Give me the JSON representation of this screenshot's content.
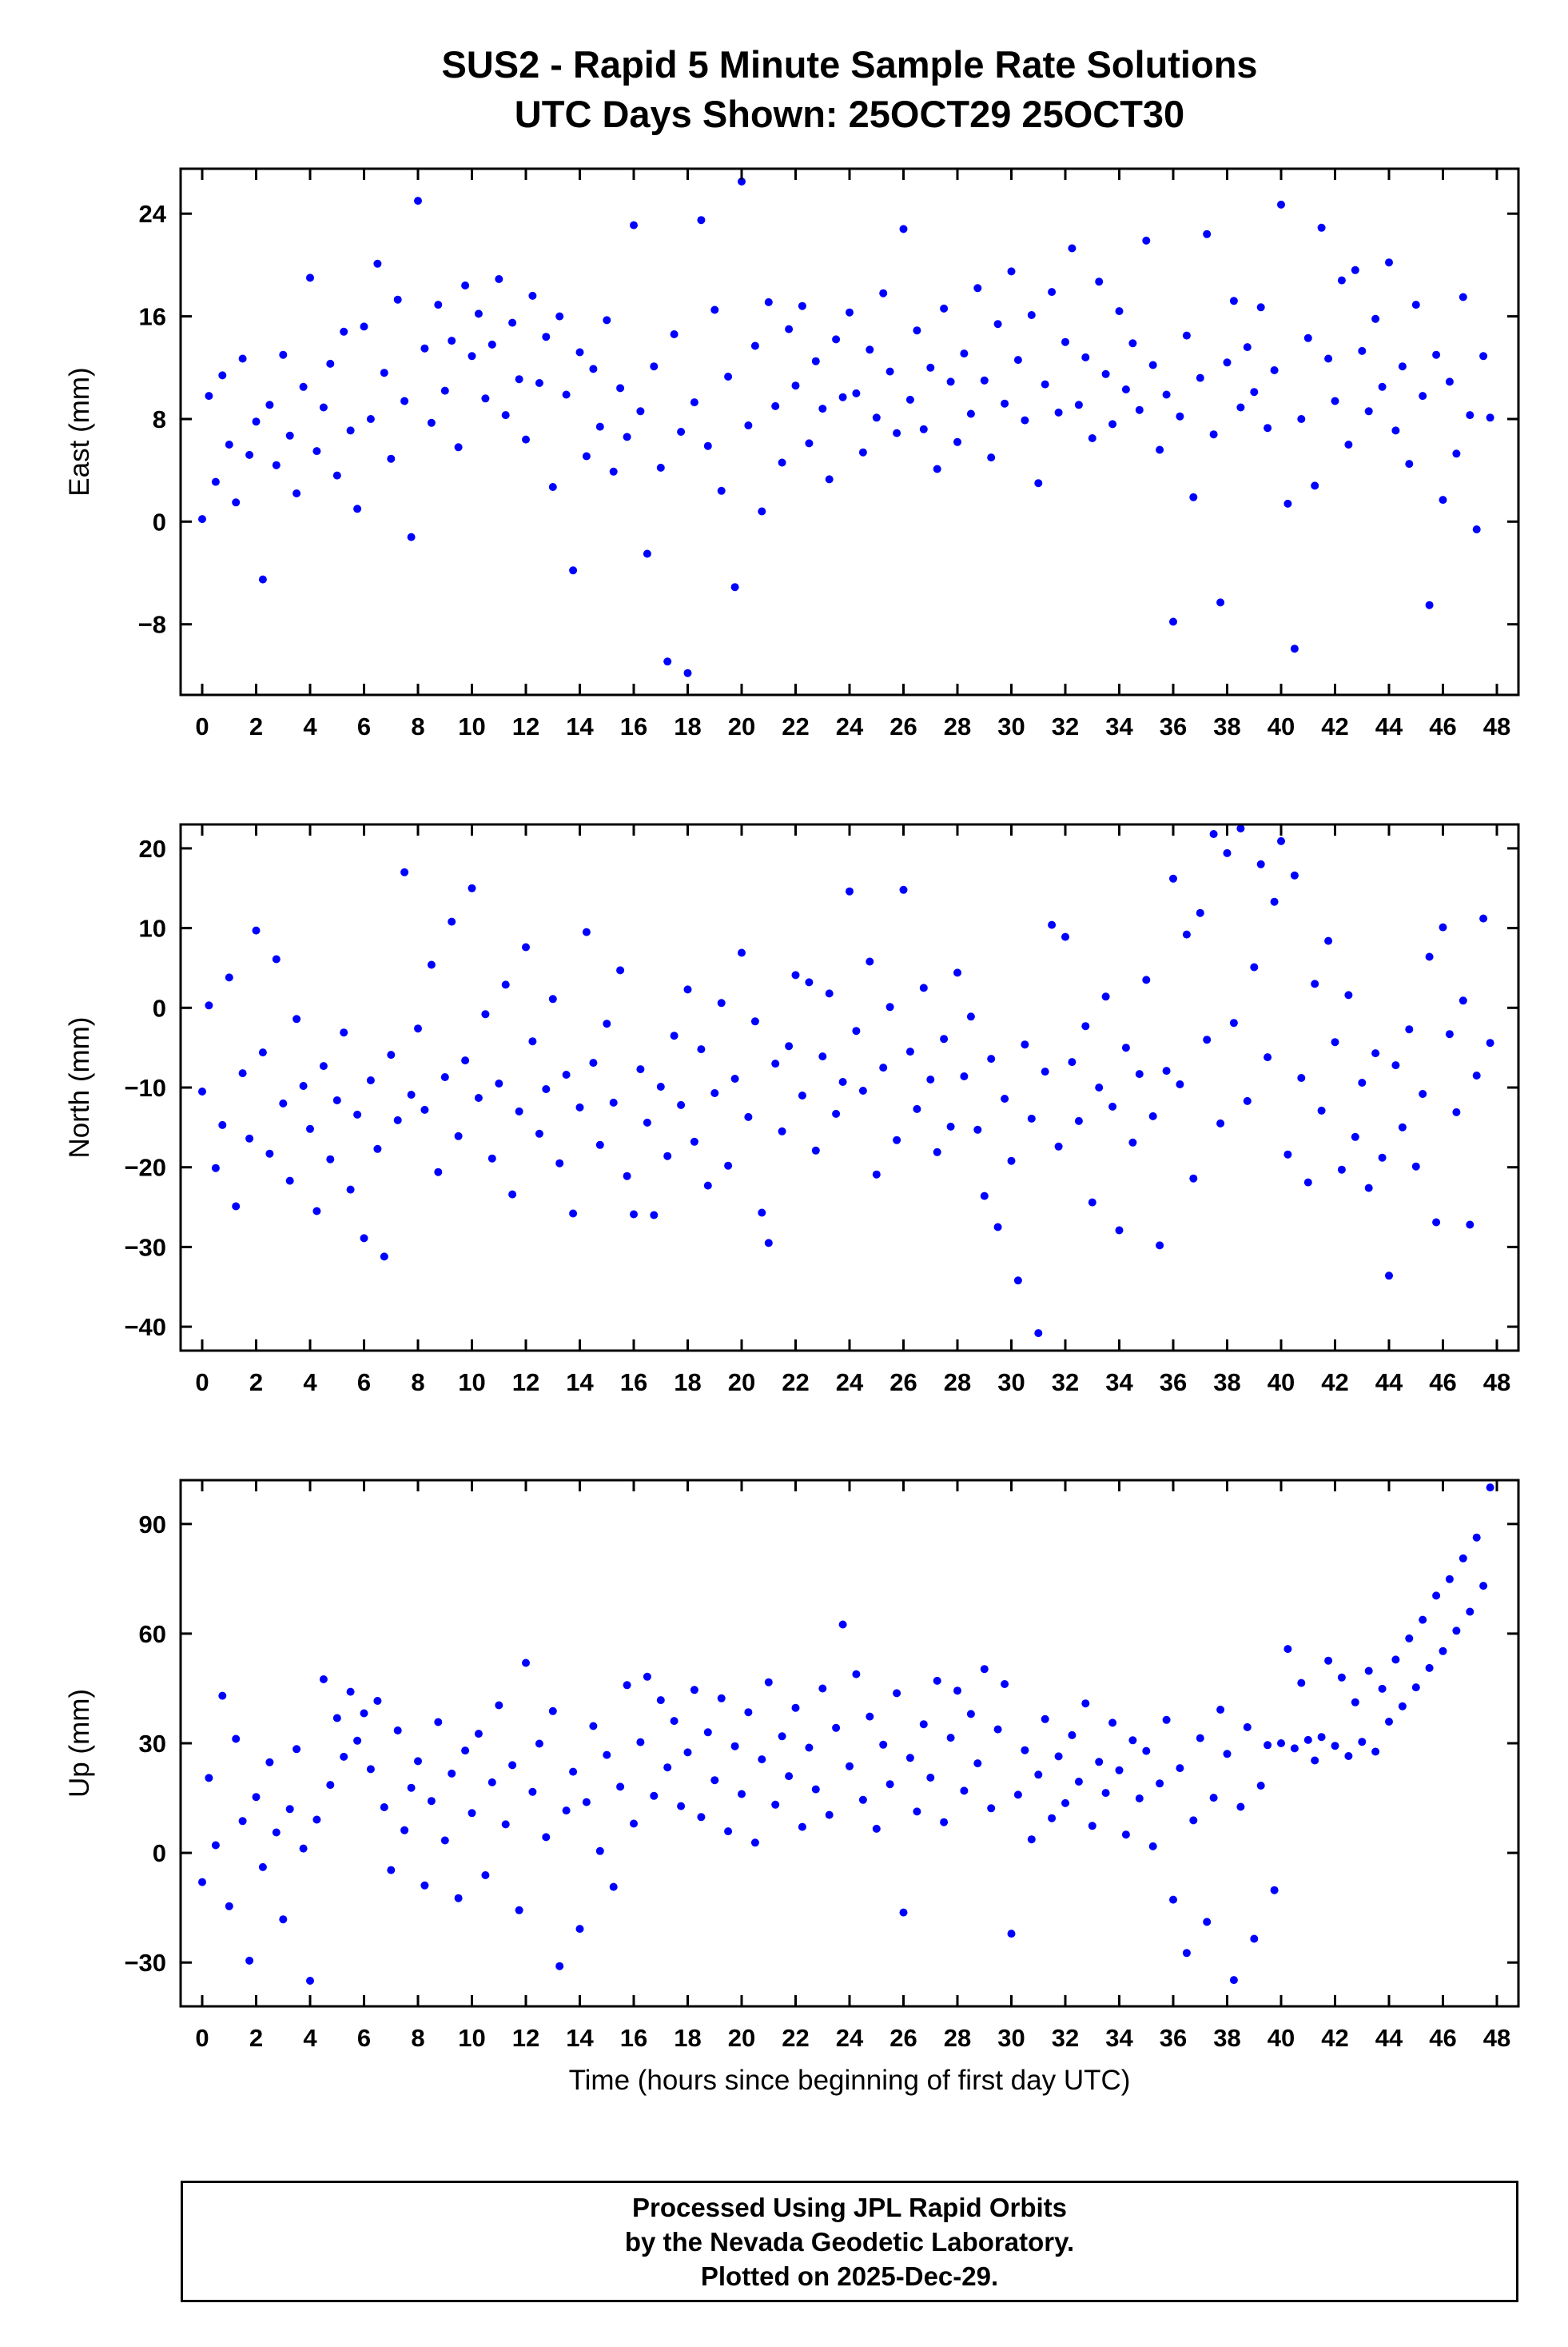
{
  "colors": {
    "point": "#0000ff",
    "axis": "#000000",
    "background": "#ffffff"
  },
  "footer": {
    "line1": "Processed Using JPL Rapid Orbits",
    "line2": "by the Nevada Geodetic Laboratory.",
    "line3": "Plotted on 2025-Dec-29."
  },
  "chart_data": {
    "type": "scatter",
    "title": "SUS2 - Rapid 5 Minute Sample Rate Solutions",
    "subtitle": "UTC Days Shown:  25OCT29 25OCT30",
    "xlabel": "Time (hours since beginning of first day UTC)",
    "grid": false,
    "legend": "none",
    "x_start": 0,
    "x_step": 0.25,
    "xlim": [
      -0.8,
      48.8
    ],
    "x_ticks": [
      0,
      2,
      4,
      6,
      8,
      10,
      12,
      14,
      16,
      18,
      20,
      22,
      24,
      26,
      28,
      30,
      32,
      34,
      36,
      38,
      40,
      42,
      44,
      46,
      48
    ],
    "panels": [
      {
        "name": "east",
        "ylabel": "East (mm)",
        "ylim": [
          -13.5,
          27.5
        ],
        "y_ticks": [
          -8,
          0,
          8,
          16,
          24
        ],
        "y": [
          0.2,
          9.8,
          3.1,
          11.4,
          6.0,
          1.5,
          12.7,
          5.2,
          7.8,
          -4.5,
          9.1,
          4.4,
          13.0,
          6.7,
          2.2,
          10.5,
          19.0,
          5.5,
          8.9,
          12.3,
          3.6,
          14.8,
          7.1,
          1.0,
          15.2,
          8.0,
          20.1,
          11.6,
          4.9,
          17.3,
          9.4,
          -1.2,
          25.0,
          13.5,
          7.7,
          16.9,
          10.2,
          14.1,
          5.8,
          18.4,
          12.9,
          16.2,
          9.6,
          13.8,
          18.9,
          8.3,
          15.5,
          11.1,
          6.4,
          17.6,
          10.8,
          14.4,
          2.7,
          16.0,
          9.9,
          -3.8,
          13.2,
          5.1,
          11.9,
          7.4,
          15.7,
          3.9,
          10.4,
          6.6,
          23.1,
          8.6,
          -2.5,
          12.1,
          4.2,
          -10.9,
          14.6,
          7.0,
          -11.8,
          9.3,
          23.5,
          5.9,
          16.5,
          2.4,
          11.3,
          -5.1,
          26.5,
          7.5,
          13.7,
          0.8,
          17.1,
          9.0,
          4.6,
          15.0,
          10.6,
          16.8,
          6.1,
          12.5,
          8.8,
          3.3,
          14.2,
          9.7,
          16.3,
          10.0,
          5.4,
          13.4,
          8.1,
          17.8,
          11.7,
          6.9,
          22.8,
          9.5,
          14.9,
          7.2,
          12.0,
          4.1,
          16.6,
          10.9,
          6.2,
          13.1,
          8.4,
          18.2,
          11.0,
          5.0,
          15.4,
          9.2,
          19.5,
          12.6,
          7.9,
          16.1,
          3.0,
          10.7,
          17.9,
          8.5,
          14.0,
          21.3,
          9.1,
          12.8,
          6.5,
          18.7,
          11.5,
          7.6,
          16.4,
          10.3,
          13.9,
          8.7,
          21.9,
          12.2,
          5.6,
          9.9,
          -7.8,
          8.2,
          14.5,
          1.9,
          11.2,
          22.4,
          6.8,
          -6.3,
          12.4,
          17.2,
          8.9,
          13.6,
          10.1,
          16.7,
          7.3,
          11.8,
          24.7,
          1.4,
          -9.9,
          8.0,
          14.3,
          2.8,
          22.9,
          12.7,
          9.4,
          18.8,
          6.0,
          19.6,
          13.3,
          8.6,
          15.8,
          10.5,
          20.2,
          7.1,
          12.1,
          4.5,
          16.9,
          9.8,
          -6.5,
          13.0,
          1.7,
          10.9,
          5.3,
          17.5,
          8.3,
          -0.6,
          12.9,
          8.1
        ]
      },
      {
        "name": "north",
        "ylabel": "North (mm)",
        "ylim": [
          -43,
          23
        ],
        "y_ticks": [
          -40,
          -30,
          -20,
          -10,
          0,
          10,
          20
        ],
        "y": [
          -10.5,
          0.3,
          -20.1,
          -14.7,
          3.8,
          -24.9,
          -8.2,
          -16.4,
          9.7,
          -5.6,
          -18.3,
          6.1,
          -12.0,
          -21.7,
          -1.4,
          -9.8,
          -15.2,
          -25.5,
          -7.3,
          -19.0,
          -11.6,
          -3.1,
          -22.8,
          -13.4,
          -28.9,
          -9.1,
          -17.7,
          -31.2,
          -5.9,
          -14.1,
          17.0,
          -10.9,
          -2.6,
          -12.8,
          5.4,
          -20.6,
          -8.7,
          10.8,
          -16.1,
          -6.6,
          15.0,
          -11.3,
          -0.8,
          -18.9,
          -9.5,
          2.9,
          -23.4,
          -13.0,
          7.6,
          -4.2,
          -15.8,
          -10.2,
          1.1,
          -19.5,
          -8.4,
          -25.8,
          -12.5,
          9.5,
          -6.9,
          -17.2,
          -2.0,
          -11.9,
          4.7,
          -21.1,
          -25.9,
          -7.7,
          -14.4,
          -26.0,
          -9.9,
          -18.6,
          -3.5,
          -12.2,
          2.3,
          -16.8,
          -5.2,
          -22.3,
          -10.7,
          0.6,
          -19.8,
          -8.9,
          6.9,
          -13.7,
          -1.7,
          -25.7,
          -29.5,
          -7.0,
          -15.5,
          -4.8,
          4.1,
          -11.0,
          3.2,
          -17.9,
          -6.1,
          1.8,
          -13.3,
          -9.3,
          14.6,
          -2.9,
          -10.4,
          5.8,
          -20.9,
          -7.5,
          0.1,
          -16.6,
          14.8,
          -5.5,
          -12.7,
          2.5,
          -9.0,
          -18.1,
          -3.9,
          -14.9,
          4.4,
          -8.6,
          -1.1,
          -15.3,
          -23.6,
          -6.4,
          -27.5,
          -11.4,
          -19.2,
          -34.2,
          -4.6,
          -13.9,
          -40.8,
          -8.0,
          10.4,
          -17.4,
          8.9,
          -6.8,
          -14.2,
          -2.3,
          -24.4,
          -10.0,
          1.4,
          -12.4,
          -27.9,
          -5.0,
          -16.9,
          -8.3,
          3.5,
          -13.6,
          -29.8,
          -7.9,
          16.2,
          -9.6,
          9.2,
          -21.4,
          11.9,
          -4.0,
          21.8,
          -14.5,
          19.4,
          -1.9,
          22.5,
          -11.7,
          5.1,
          18.0,
          -6.2,
          13.3,
          20.9,
          -18.4,
          16.6,
          -8.8,
          -21.9,
          3.0,
          -12.9,
          8.4,
          -4.3,
          -20.3,
          1.6,
          -16.2,
          -9.4,
          -22.6,
          -5.7,
          -18.8,
          -33.6,
          -7.2,
          -15.0,
          -2.7,
          -19.9,
          -10.8,
          6.4,
          -26.9,
          10.1,
          -3.3,
          -13.1,
          0.9,
          -27.2,
          -8.5,
          11.2,
          -4.4
        ]
      },
      {
        "name": "up",
        "ylabel": "Up (mm)",
        "ylim": [
          -42,
          102
        ],
        "y_ticks": [
          -30,
          0,
          30,
          60,
          90
        ],
        "y": [
          -8.0,
          20.5,
          2.1,
          43.0,
          -14.6,
          31.2,
          8.7,
          -29.5,
          15.3,
          -3.9,
          24.8,
          5.6,
          -18.2,
          12.0,
          28.4,
          1.2,
          -35.0,
          9.1,
          47.5,
          18.6,
          36.9,
          26.3,
          44.1,
          30.7,
          38.2,
          22.9,
          41.6,
          12.5,
          -4.7,
          33.5,
          6.2,
          17.8,
          25.1,
          -8.9,
          14.2,
          35.8,
          3.4,
          21.7,
          -12.4,
          28.0,
          10.9,
          32.6,
          -6.1,
          19.3,
          40.4,
          7.8,
          24.0,
          -15.7,
          52.0,
          16.7,
          29.9,
          4.3,
          38.8,
          -31.0,
          11.6,
          22.2,
          -20.8,
          13.9,
          34.7,
          0.5,
          26.8,
          -9.3,
          18.1,
          45.9,
          8.0,
          30.3,
          48.2,
          15.6,
          41.8,
          23.4,
          36.1,
          12.8,
          27.5,
          44.6,
          9.8,
          33.0,
          19.9,
          42.3,
          5.9,
          29.2,
          16.1,
          38.5,
          2.8,
          25.6,
          46.7,
          13.2,
          31.9,
          21.0,
          39.7,
          7.1,
          28.8,
          17.4,
          45.0,
          10.4,
          34.2,
          62.5,
          23.7,
          48.9,
          14.5,
          37.3,
          6.6,
          29.6,
          18.8,
          43.7,
          -16.3,
          26.0,
          11.3,
          35.2,
          20.6,
          47.1,
          8.4,
          31.5,
          44.4,
          17.0,
          38.0,
          24.5,
          50.3,
          12.2,
          33.8,
          46.2,
          -22.1,
          15.9,
          28.1,
          3.7,
          21.4,
          36.6,
          9.5,
          26.4,
          13.6,
          32.2,
          19.5,
          40.9,
          7.4,
          24.9,
          16.4,
          35.6,
          22.6,
          5.0,
          30.8,
          14.9,
          27.9,
          1.8,
          19.0,
          36.4,
          -12.8,
          23.2,
          -27.4,
          8.9,
          31.4,
          -18.9,
          15.1,
          39.2,
          27.1,
          -34.8,
          12.6,
          34.4,
          -23.5,
          18.4,
          29.5,
          -10.2,
          30.0,
          55.8,
          28.6,
          46.5,
          30.9,
          25.3,
          31.7,
          52.6,
          29.3,
          48.0,
          26.5,
          41.2,
          30.4,
          49.8,
          27.7,
          44.9,
          35.9,
          52.9,
          40.1,
          58.7,
          45.3,
          63.8,
          50.6,
          70.4,
          55.2,
          74.9,
          60.8,
          80.6,
          66.0,
          86.3,
          73.1,
          100.0
        ]
      }
    ]
  }
}
